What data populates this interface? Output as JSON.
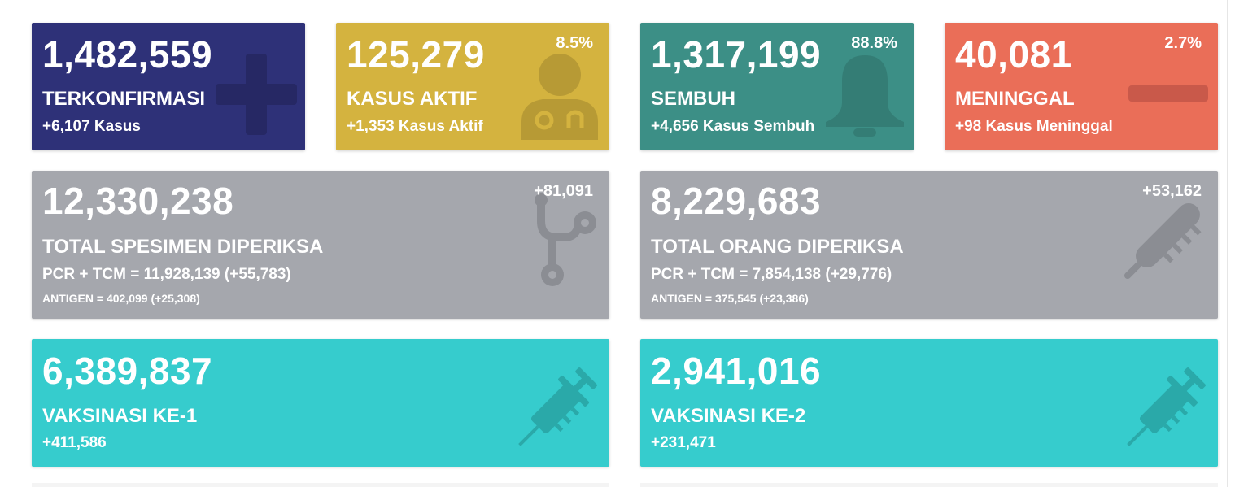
{
  "colors": {
    "confirmed": "#2e3178",
    "active": "#d4b33f",
    "recovered": "#3c8f86",
    "deaths": "#ea6e58",
    "tests": "#a5a7ad",
    "vaccine": "#36cccd"
  },
  "confirmed": {
    "count": "1,482,559",
    "label": "TERKONFIRMASI",
    "delta": "+6,107 Kasus",
    "icon": "plus-icon"
  },
  "active": {
    "count": "125,279",
    "percent": "8.5%",
    "label": "KASUS AKTIF",
    "delta": "+1,353 Kasus Aktif",
    "icon": "doctor-icon"
  },
  "recovered": {
    "count": "1,317,199",
    "percent": "88.8%",
    "label": "SEMBUH",
    "delta": "+4,656 Kasus Sembuh",
    "icon": "bell-icon"
  },
  "deaths": {
    "count": "40,081",
    "percent": "2.7%",
    "label": "MENINGGAL",
    "delta": "+98 Kasus Meninggal",
    "icon": "minus-icon"
  },
  "specimens": {
    "count": "12,330,238",
    "delta": "+81,091",
    "label": "TOTAL SPESIMEN DIPERIKSA",
    "pcr": "PCR + TCM = 11,928,139 (+55,783)",
    "antigen": "ANTIGEN = 402,099 (+25,308)",
    "icon": "stethoscope-icon"
  },
  "people": {
    "count": "8,229,683",
    "delta": "+53,162",
    "label": "TOTAL ORANG DIPERIKSA",
    "pcr": "PCR + TCM = 7,854,138 (+29,776)",
    "antigen": "ANTIGEN = 375,545 (+23,386)",
    "icon": "thermometer-icon"
  },
  "vaccine1": {
    "count": "6,389,837",
    "label": "VAKSINASI KE-1",
    "delta": "+411,586",
    "icon": "syringe-icon"
  },
  "vaccine2": {
    "count": "2,941,016",
    "label": "VAKSINASI KE-2",
    "delta": "+231,471",
    "icon": "syringe-icon"
  }
}
